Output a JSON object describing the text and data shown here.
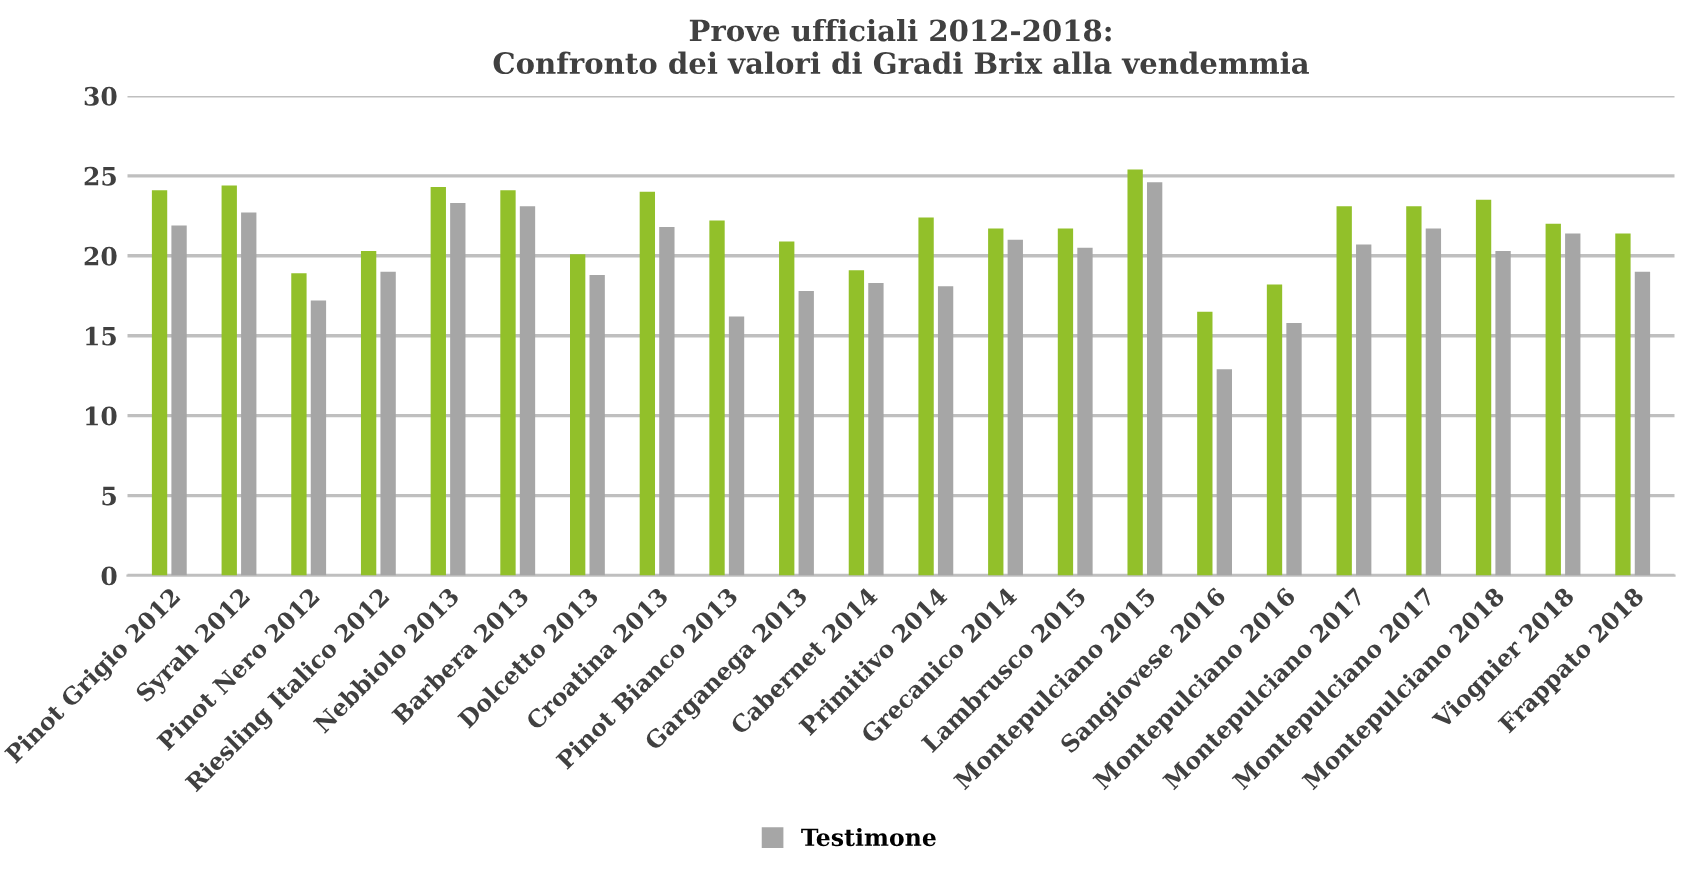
{
  "chart_data": {
    "type": "bar",
    "title": "Prove ufficiali 2012-2018:\nConfronto dei valori di Gradi Brix alla vendemmia",
    "categories": [
      "Pinot Grigio 2012",
      "Syrah 2012",
      "Pinot Nero 2012",
      "Riesling Italico 2012",
      "Nebbiolo 2013",
      "Barbera 2013",
      "Dolcetto 2013",
      "Croatina 2013",
      "Pinot Bianco 2013",
      "Garganega 2013",
      "Cabernet 2014",
      "Primitivo 2014",
      "Grecanico 2014",
      "Lambrusco 2015",
      "Montepulciano 2015",
      "Sangiovese 2016",
      "Montepulciano 2016",
      "Montepulciano 2017",
      "Montepulciano 2017",
      "Montepulciano 2018",
      "Viognier 2018",
      "Frappato 2018"
    ],
    "series": [
      {
        "color": "#92c02a",
        "values": [
          24.1,
          24.4,
          18.9,
          20.3,
          24.3,
          24.1,
          20.1,
          24.0,
          22.2,
          20.9,
          19.1,
          22.4,
          21.7,
          21.7,
          25.4,
          16.5,
          18.2,
          23.1,
          23.1,
          23.5,
          22.0,
          21.4
        ]
      },
      {
        "name": "Testimone",
        "color": "#a6a6a6",
        "values": [
          21.9,
          22.7,
          17.2,
          19.0,
          23.3,
          23.1,
          18.8,
          21.8,
          16.2,
          17.8,
          18.3,
          18.1,
          21.0,
          20.5,
          24.6,
          12.9,
          15.8,
          20.7,
          21.7,
          20.3,
          21.4,
          19.0
        ]
      }
    ],
    "ylim": [
      0,
      30
    ],
    "yticks": [
      0,
      5,
      10,
      15,
      20,
      25,
      30
    ],
    "grid": "y",
    "legend": "bottom"
  }
}
